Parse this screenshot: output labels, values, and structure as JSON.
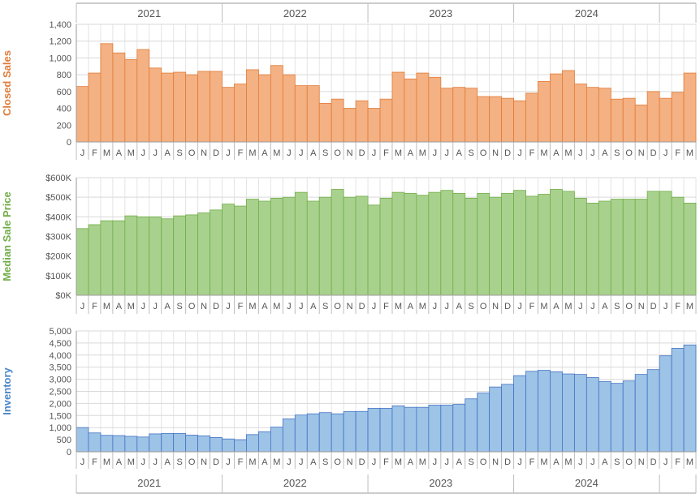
{
  "years": [
    "2021",
    "2022",
    "2023",
    "2024"
  ],
  "month_letters": [
    "J",
    "F",
    "M",
    "A",
    "M",
    "J",
    "J",
    "A",
    "S",
    "O",
    "N",
    "D"
  ],
  "chart_data": [
    {
      "type": "bar",
      "ylabel": "Closed Sales",
      "color": "#f4b183",
      "stroke": "#e07b39",
      "label_color": "#e07b39",
      "ylim": [
        0,
        1400
      ],
      "ticks": [
        0,
        200,
        400,
        600,
        800,
        1000,
        1200,
        1400
      ],
      "tick_labels": [
        "0",
        "200",
        "400",
        "600",
        "800",
        "1,000",
        "1,200",
        "1,400"
      ],
      "values": [
        660,
        820,
        1170,
        1060,
        980,
        1100,
        880,
        820,
        830,
        800,
        840,
        840,
        650,
        690,
        860,
        800,
        910,
        800,
        670,
        670,
        460,
        510,
        400,
        490,
        400,
        510,
        830,
        750,
        820,
        770,
        640,
        650,
        640,
        540,
        540,
        520,
        490,
        580,
        720,
        810,
        850,
        690,
        650,
        640,
        510,
        520,
        440,
        600,
        520,
        590,
        820
      ]
    },
    {
      "type": "bar",
      "ylabel": "Median Sale Price",
      "color": "#a9d18e",
      "stroke": "#70ad47",
      "label_color": "#70ad47",
      "ylim": [
        0,
        600
      ],
      "ticks": [
        0,
        100,
        200,
        300,
        400,
        500,
        600
      ],
      "tick_labels": [
        "$0K",
        "$100K",
        "$200K",
        "$300K",
        "$400K",
        "$500K",
        "$600K"
      ],
      "values": [
        340,
        360,
        380,
        380,
        405,
        400,
        400,
        390,
        405,
        410,
        420,
        435,
        465,
        455,
        490,
        480,
        495,
        500,
        525,
        480,
        500,
        540,
        500,
        505,
        460,
        495,
        525,
        520,
        510,
        525,
        535,
        520,
        495,
        520,
        500,
        520,
        535,
        505,
        515,
        540,
        530,
        495,
        470,
        480,
        490,
        490,
        490,
        530,
        530,
        500,
        470
      ]
    },
    {
      "type": "bar",
      "ylabel": "Inventory",
      "color": "#9dc3e6",
      "stroke": "#4472c4",
      "label_color": "#4a86c8",
      "ylim": [
        0,
        5000
      ],
      "ticks": [
        0,
        500,
        1000,
        1500,
        2000,
        2500,
        3000,
        3500,
        4000,
        4500,
        5000
      ],
      "tick_labels": [
        "0",
        "500",
        "1,000",
        "1,500",
        "2,000",
        "2,500",
        "3,000",
        "3,500",
        "4,000",
        "4,500",
        "5,000"
      ],
      "values": [
        1000,
        780,
        680,
        670,
        640,
        610,
        740,
        760,
        760,
        690,
        660,
        590,
        530,
        500,
        710,
        830,
        1020,
        1360,
        1520,
        1570,
        1620,
        1570,
        1660,
        1670,
        1800,
        1800,
        1900,
        1840,
        1840,
        1930,
        1930,
        1960,
        2190,
        2430,
        2680,
        2790,
        3150,
        3330,
        3370,
        3310,
        3220,
        3200,
        3070,
        2910,
        2830,
        2930,
        3200,
        3400,
        3970,
        4280,
        4420
      ]
    }
  ]
}
